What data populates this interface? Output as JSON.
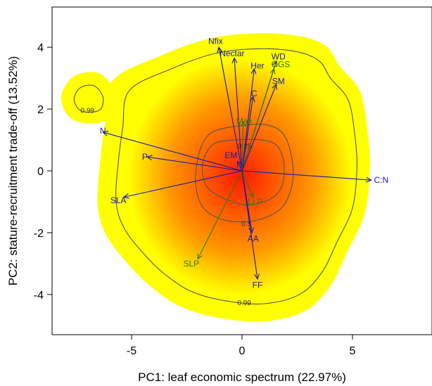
{
  "chart_data": {
    "type": "scatter",
    "subtype": "pca-biplot-with-density",
    "title": "",
    "xlabel": "PC1: leaf economic spectrum (22.97%)",
    "ylabel": "PC2: stature-recruitment trade-off (13.52%)",
    "xlim": [
      -8.6,
      8.6
    ],
    "ylim": [
      -5.3,
      5.3
    ],
    "x_ticks": [
      -5,
      0,
      5
    ],
    "y_ticks": [
      -4,
      -2,
      0,
      2,
      4
    ],
    "x_tick_labels": [
      "-5",
      "0",
      "5"
    ],
    "y_tick_labels": [
      "-4",
      "-2",
      "0",
      "2",
      "4"
    ],
    "grid": false,
    "density_colors": {
      "low": "#ffff00",
      "mid": "#ff9900",
      "high": "#ff1a00"
    },
    "density_peak": [
      0.7,
      0.1
    ],
    "contours": [
      {
        "label": "0.25",
        "label_at": [
          0.12,
          0.82
        ],
        "points": [
          [
            -1.2,
            0.9
          ],
          [
            -0.3,
            1.0
          ],
          [
            0.9,
            1.0
          ],
          [
            1.6,
            0.8
          ],
          [
            1.9,
            0.2
          ],
          [
            1.8,
            -0.5
          ],
          [
            1.3,
            -0.9
          ],
          [
            0.3,
            -1.1
          ],
          [
            -0.8,
            -0.9
          ],
          [
            -1.6,
            -0.5
          ],
          [
            -1.8,
            0.1
          ],
          [
            -1.6,
            0.6
          ]
        ]
      },
      {
        "label": "0.5",
        "label_at": [
          0.2,
          -1.7
        ],
        "points": [
          [
            -1.2,
            1.3
          ],
          [
            -0.2,
            1.45
          ],
          [
            1.0,
            1.5
          ],
          [
            1.8,
            1.25
          ],
          [
            2.2,
            0.6
          ],
          [
            2.3,
            -0.3
          ],
          [
            1.9,
            -1.1
          ],
          [
            1.1,
            -1.5
          ],
          [
            0.1,
            -1.65
          ],
          [
            -1.0,
            -1.55
          ],
          [
            -1.8,
            -1.15
          ],
          [
            -2.1,
            -0.4
          ],
          [
            -2.0,
            0.4
          ],
          [
            -1.7,
            1.0
          ]
        ]
      },
      {
        "label": "0.99",
        "label_at": [
          0.1,
          -4.25
        ],
        "points": [
          [
            -5.4,
            1.4
          ],
          [
            -5.1,
            2.6
          ],
          [
            -3.2,
            3.3
          ],
          [
            -1.2,
            3.8
          ],
          [
            0.8,
            3.95
          ],
          [
            2.5,
            3.85
          ],
          [
            3.5,
            3.55
          ],
          [
            4.0,
            3.0
          ],
          [
            4.8,
            2.3
          ],
          [
            5.1,
            1.2
          ],
          [
            5.2,
            0.1
          ],
          [
            5.0,
            -1.2
          ],
          [
            4.3,
            -2.3
          ],
          [
            3.6,
            -3.3
          ],
          [
            2.6,
            -4.0
          ],
          [
            1.0,
            -4.3
          ],
          [
            -0.8,
            -4.2
          ],
          [
            -2.3,
            -3.9
          ],
          [
            -3.4,
            -3.4
          ],
          [
            -4.3,
            -2.8
          ],
          [
            -5.3,
            -1.9
          ],
          [
            -5.7,
            -1.0
          ],
          [
            -5.6,
            0.3
          ]
        ]
      },
      {
        "label": "0.99",
        "label_at": [
          -7.0,
          1.97
        ],
        "points": [
          [
            -7.6,
            2.35
          ],
          [
            -7.3,
            2.7
          ],
          [
            -6.7,
            2.75
          ],
          [
            -6.3,
            2.4
          ],
          [
            -6.4,
            2.0
          ],
          [
            -6.9,
            1.9
          ],
          [
            -7.4,
            2.0
          ]
        ]
      }
    ],
    "vectors": [
      {
        "label": "Nfix",
        "x": -1.05,
        "y": 4.0,
        "color": "#1a1aa8",
        "label_x": -1.2,
        "label_y": 4.2
      },
      {
        "label": "Nectar",
        "x": -0.35,
        "y": 3.65,
        "color": "#1a1aa8",
        "label_x": -0.45,
        "label_y": 3.8
      },
      {
        "label": "WD",
        "x": 1.55,
        "y": 3.55,
        "color": "#1a1aa8",
        "label_x": 1.65,
        "label_y": 3.7
      },
      {
        "label": "Her",
        "x": 0.55,
        "y": 3.3,
        "color": "#1a1aa8",
        "label_x": 0.7,
        "label_y": 3.4
      },
      {
        "label": "OGS",
        "x": 1.45,
        "y": 3.3,
        "color": "#2e7d00",
        "label_x": 1.75,
        "label_y": 3.45
      },
      {
        "label": "SM",
        "x": 1.55,
        "y": 2.8,
        "color": "#1a1aa8",
        "label_x": 1.65,
        "label_y": 2.9
      },
      {
        "label": "C",
        "x": 0.5,
        "y": 2.4,
        "color": "#1a1aa8",
        "label_x": 0.55,
        "label_y": 2.5
      },
      {
        "label": "Max",
        "x": 0.05,
        "y": 1.6,
        "color": "#2e7d00",
        "label_x": 0.1,
        "label_y": 1.6
      },
      {
        "label": "N",
        "x": -6.3,
        "y": 1.25,
        "color": "#1a1aa8",
        "label_x": -6.3,
        "label_y": 1.3
      },
      {
        "label": "P",
        "x": -4.3,
        "y": 0.45,
        "color": "#1a1aa8",
        "label_x": -4.4,
        "label_y": 0.45
      },
      {
        "label": "EM",
        "x": -0.2,
        "y": 0.3,
        "color": "#1a1aa8",
        "label_x": -0.5,
        "label_y": 0.5
      },
      {
        "label": "C:N",
        "x": 5.85,
        "y": -0.3,
        "color": "#1a1aa8",
        "label_x": 6.3,
        "label_y": -0.3
      },
      {
        "label": "SLA",
        "x": -5.35,
        "y": -0.85,
        "color": "#1a1aa8",
        "label_x": -5.6,
        "label_y": -0.95
      },
      {
        "label": "LLP",
        "x": 0.5,
        "y": -0.85,
        "color": "#2e7d00",
        "label_x": 0.6,
        "label_y": -1.0
      },
      {
        "label": "AA",
        "x": 0.45,
        "y": -2.0,
        "color": "#1a1aa8",
        "label_x": 0.5,
        "label_y": -2.2
      },
      {
        "label": "SLP",
        "x": -2.0,
        "y": -2.85,
        "color": "#2e7d00",
        "label_x": -2.3,
        "label_y": -3.0
      },
      {
        "label": "FF",
        "x": 0.7,
        "y": -3.5,
        "color": "#1a1aa8",
        "label_x": 0.7,
        "label_y": -3.7
      }
    ]
  }
}
